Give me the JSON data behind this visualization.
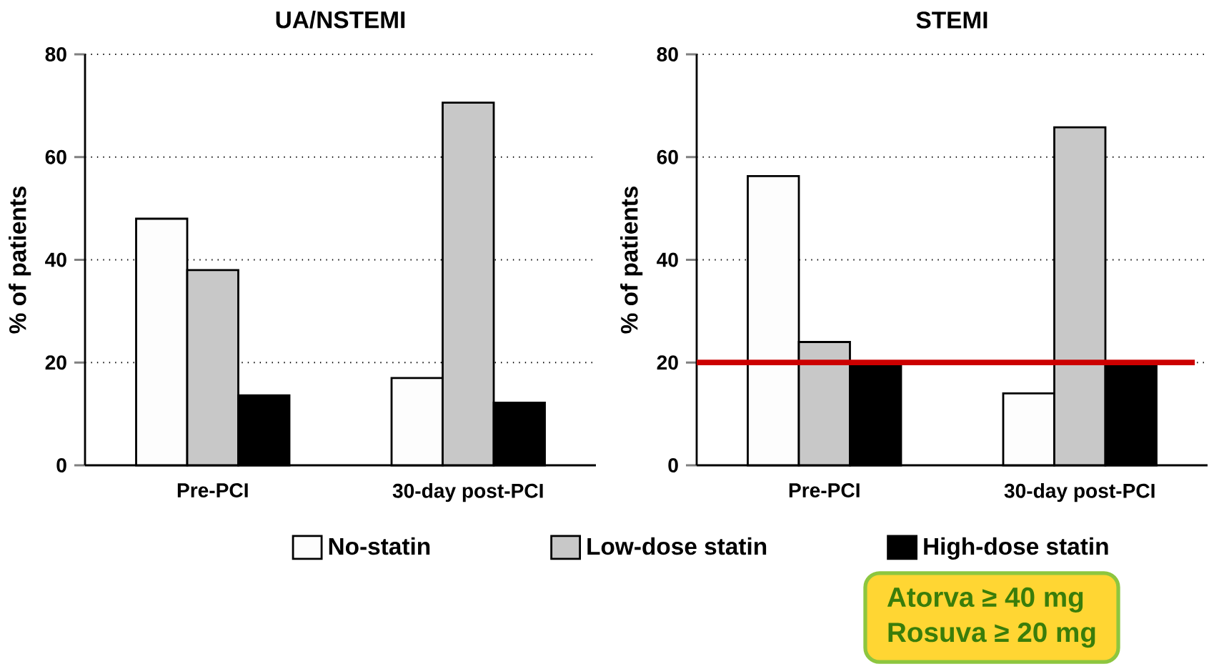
{
  "chart_data": [
    {
      "type": "bar",
      "title": "UA/NSTEMI",
      "ylabel": "% of patients",
      "categories": [
        "Pre-PCI",
        "30-day post-PCI"
      ],
      "series": [
        {
          "name": "No-statin",
          "color": "#fdfdfd",
          "values": [
            48,
            17
          ]
        },
        {
          "name": "Low-dose statin",
          "color": "#c8c8c8",
          "values": [
            38,
            70.6
          ]
        },
        {
          "name": "High-dose statin",
          "color": "#000000",
          "values": [
            13.6,
            12.2
          ]
        }
      ],
      "ylim": [
        0,
        80
      ],
      "yticks": [
        0,
        20,
        40,
        60,
        80
      ],
      "grid": "y",
      "legend": "bottom"
    },
    {
      "type": "bar",
      "title": "STEMI",
      "ylabel": "% of patients",
      "categories": [
        "Pre-PCI",
        "30-day post-PCI"
      ],
      "series": [
        {
          "color": "#fdfdfd",
          "values": [
            56.3,
            14
          ]
        },
        {
          "color": "#c8c8c8",
          "values": [
            24,
            65.8
          ]
        },
        {
          "color": "#000000",
          "values": [
            20,
            20
          ]
        }
      ],
      "ylim": [
        0,
        80
      ],
      "yticks": [
        0,
        20,
        40,
        60,
        80
      ],
      "grid": "y",
      "ref_lines": [
        {
          "axis": "y",
          "value": 20,
          "color": "#cc0000"
        }
      ],
      "annotations": [
        "Atorva ≥ 40 mg",
        "Rosuva ≥ 20 mg"
      ]
    }
  ]
}
